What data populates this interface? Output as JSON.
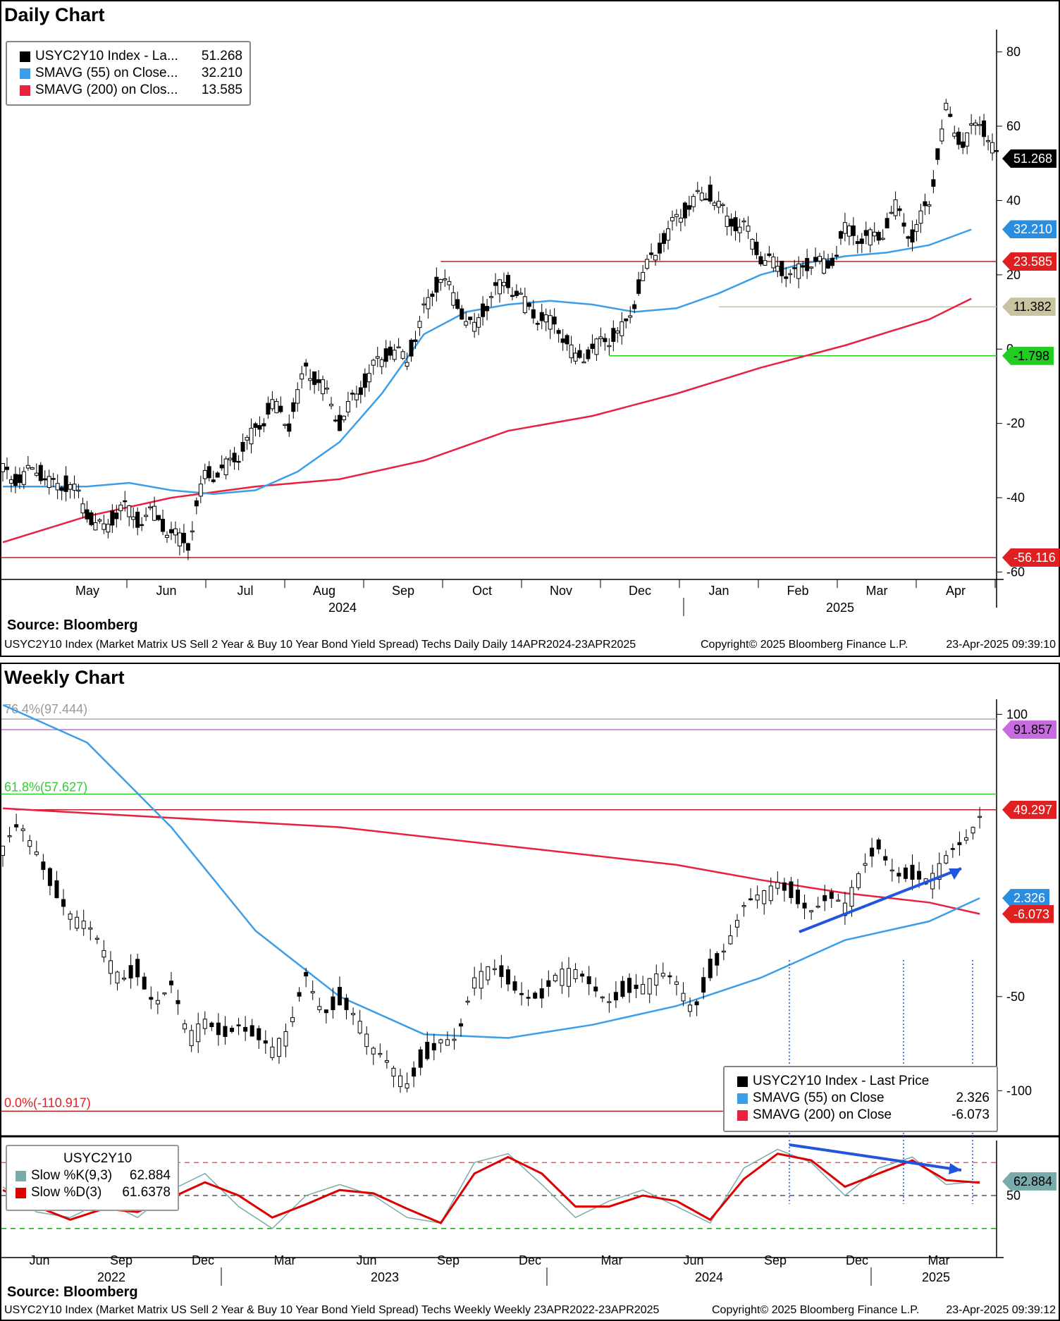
{
  "daily": {
    "title": "Daily Chart",
    "source": "Source:  Bloomberg",
    "footer_left": "USYC2Y10 Index (Market Matrix US Sell 2 Year & Buy 10 Year Bond Yield Spread) Techs Daily  Daily 14APR2024-23APR2025",
    "footer_mid": "Copyright© 2025 Bloomberg Finance L.P.",
    "footer_right": "23-Apr-2025 09:39:10",
    "legend": [
      {
        "name": "USYC2Y10 Index - La...",
        "value": "51.268",
        "color": "#000000"
      },
      {
        "name": "SMAVG (55)  on Close...",
        "value": "32.210",
        "color": "#3c9ee8"
      },
      {
        "name": "SMAVG (200)  on Clos...",
        "value": "13.585",
        "color": "#e8213f"
      }
    ],
    "tags": [
      {
        "label": "51.268",
        "value": 51.268,
        "bg": "#000000",
        "fg": "#ffffff"
      },
      {
        "label": "32.210",
        "value": 32.21,
        "bg": "#2a8de0",
        "fg": "#ffffff"
      },
      {
        "label": "23.585",
        "value": 23.585,
        "bg": "#e02020",
        "fg": "#ffffff"
      },
      {
        "label": "11.382",
        "value": 11.382,
        "bg": "#c8c4a0",
        "fg": "#000000"
      },
      {
        "label": "-1.798",
        "value": -1.798,
        "bg": "#22cc22",
        "fg": "#000000"
      },
      {
        "label": "-56.116",
        "value": -56.116,
        "bg": "#e02020",
        "fg": "#ffffff"
      }
    ]
  },
  "weekly": {
    "title": "Weekly Chart",
    "source": "Source:  Bloomberg",
    "footer_left": "USYC2Y10 Index (Market Matrix US Sell 2 Year & Buy 10 Year Bond Yield Spread) Techs Weekly  Weekly 23APR2022-23APR2025",
    "footer_mid": "Copyright© 2025 Bloomberg Finance L.P.",
    "footer_right": "23-Apr-2025 09:39:12",
    "fib_labels": {
      "f764": "76.4%(97.444)",
      "f618": "61.8%(57.627)",
      "f0": "0.0%(-110.917)"
    },
    "legend": [
      {
        "name": "USYC2Y10 Index - Last Price",
        "value": "",
        "color": "#000000"
      },
      {
        "name": "SMAVG (55)  on Close",
        "value": "2.326",
        "color": "#3c9ee8"
      },
      {
        "name": "SMAVG (200)  on Close",
        "value": "-6.073",
        "color": "#e8213f"
      }
    ],
    "tags": [
      {
        "label": "91.857",
        "value": 91.857,
        "bg": "#c86ae0",
        "fg": "#000000"
      },
      {
        "label": "49.297",
        "value": 49.297,
        "bg": "#e02020",
        "fg": "#ffffff"
      },
      {
        "label": "2.326",
        "value": 2.326,
        "bg": "#2a8de0",
        "fg": "#ffffff"
      },
      {
        "label": "-6.073",
        "value": -6.073,
        "bg": "#e02020",
        "fg": "#ffffff"
      }
    ],
    "stoch_legend": {
      "title": "USYC2Y10",
      "k": {
        "name": "Slow %K(9,3)",
        "value": "62.884",
        "color": "#7aabaa"
      },
      "d": {
        "name": "Slow %D(3)",
        "value": "61.6378",
        "color": "#dd0000"
      }
    },
    "stoch_tag": {
      "label": "62.884",
      "value": 62.884,
      "bg": "#7aabaa",
      "fg": "#000000"
    }
  },
  "chart_data": [
    {
      "type": "line",
      "title": "Daily Chart",
      "x_axis": [
        "May",
        "Jun",
        "Jul",
        "Aug",
        "Sep",
        "Oct",
        "Nov",
        "Dec",
        "Jan",
        "Feb",
        "Mar",
        "Apr"
      ],
      "x_years": [
        "2024",
        "2025"
      ],
      "ylim": [
        -62,
        86
      ],
      "yticks": [
        80,
        60,
        40,
        20,
        0,
        -20,
        -40,
        -60
      ],
      "series": [
        {
          "name": "USYC2Y10 Index - Last Price",
          "x": [
            0,
            20,
            40,
            60,
            80,
            100,
            120,
            140,
            160,
            180,
            200,
            220,
            240,
            260,
            280,
            300,
            320,
            340,
            360,
            380,
            400,
            420,
            440,
            460,
            480,
            500,
            520,
            540,
            560,
            580,
            600,
            620,
            640,
            660,
            680,
            700,
            720,
            740,
            760,
            780,
            800,
            820,
            840,
            860,
            880,
            900,
            920,
            940,
            960,
            980,
            1000,
            1020,
            1040,
            1060,
            1080,
            1100,
            1120,
            1140,
            1160,
            1180
          ],
          "values": [
            -33,
            -35,
            -32,
            -37,
            -36,
            -44,
            -49,
            -42,
            -46,
            -44,
            -50,
            -52,
            -34,
            -33,
            -28,
            -22,
            -15,
            -20,
            -5,
            -10,
            -20,
            -12,
            -5,
            0,
            -3,
            10,
            20,
            12,
            5,
            15,
            18,
            12,
            8,
            6,
            -3,
            0,
            3,
            6,
            20,
            28,
            35,
            40,
            42,
            35,
            33,
            25,
            22,
            20,
            24,
            22,
            32,
            30,
            30,
            38,
            30,
            40,
            64,
            55,
            62,
            51.268
          ]
        },
        {
          "name": "SMAVG (55)  on Close",
          "x": [
            0,
            100,
            150,
            200,
            250,
            300,
            350,
            400,
            450,
            500,
            550,
            600,
            650,
            700,
            750,
            800,
            850,
            900,
            950,
            1000,
            1050,
            1100,
            1150
          ],
          "values": [
            -37,
            -37,
            -36,
            -38,
            -39,
            -38,
            -33,
            -25,
            -12,
            4,
            10,
            12,
            13,
            12,
            10,
            11,
            15,
            20,
            23,
            25,
            26,
            28,
            32.21
          ]
        },
        {
          "name": "SMAVG (200)  on Close",
          "x": [
            0,
            100,
            200,
            300,
            400,
            500,
            600,
            700,
            800,
            900,
            1000,
            1100,
            1150
          ],
          "values": [
            -52,
            -45,
            -40,
            -37,
            -35,
            -30,
            -22,
            -18,
            -12,
            -5,
            1,
            8,
            13.585
          ]
        }
      ],
      "annotations": {
        "resistance": 23.585,
        "level_11": 11.382,
        "support": -1.798,
        "low": -56.116
      }
    },
    {
      "type": "line",
      "title": "Weekly Chart",
      "x_axis": [
        "Jun",
        "Sep",
        "Dec",
        "Mar",
        "Jun",
        "Sep",
        "Dec",
        "Mar",
        "Jun",
        "Sep",
        "Dec",
        "Mar"
      ],
      "x_years": [
        "2022",
        "2023",
        "2024",
        "2025"
      ],
      "ylim": [
        -122,
        108
      ],
      "yticks": [
        100,
        -50,
        -100
      ],
      "series": [
        {
          "name": "USYC2Y10 Index - Last Price",
          "x": [
            0,
            20,
            40,
            60,
            80,
            100,
            120,
            140,
            160,
            180,
            200,
            220,
            240,
            260,
            280,
            300,
            320,
            340,
            360,
            380,
            400,
            420,
            440,
            460,
            480,
            500,
            520,
            540,
            560,
            580,
            600,
            620,
            640,
            660,
            680,
            700,
            720,
            740,
            760,
            780,
            800,
            820,
            840,
            860,
            880,
            900,
            920,
            940,
            960,
            980,
            1000,
            1020,
            1040,
            1060,
            1080,
            1100,
            1120,
            1140,
            1160
          ],
          "values": [
            25,
            40,
            30,
            10,
            -5,
            -15,
            -30,
            -40,
            -35,
            -50,
            -45,
            -75,
            -65,
            -70,
            -60,
            -70,
            -80,
            -72,
            -40,
            -55,
            -50,
            -60,
            -82,
            -90,
            -95,
            -80,
            -70,
            -75,
            -45,
            -35,
            -40,
            -45,
            -50,
            -40,
            -40,
            -45,
            -48,
            -45,
            -45,
            -42,
            -45,
            -55,
            -35,
            -20,
            -5,
            0,
            10,
            5,
            0,
            2,
            -5,
            15,
            30,
            20,
            15,
            10,
            20,
            30,
            49.297
          ]
        },
        {
          "name": "SMAVG (55)  on Close",
          "x": [
            0,
            100,
            200,
            300,
            400,
            500,
            600,
            700,
            800,
            900,
            1000,
            1100,
            1160
          ],
          "values": [
            105,
            85,
            40,
            -15,
            -50,
            -70,
            -72,
            -65,
            -55,
            -40,
            -20,
            -10,
            2.326
          ]
        },
        {
          "name": "SMAVG (200)  on Close",
          "x": [
            0,
            200,
            400,
            600,
            800,
            900,
            1000,
            1100,
            1160
          ],
          "values": [
            50,
            45,
            40,
            30,
            20,
            12,
            5,
            0,
            -6.073
          ]
        }
      ],
      "annotations": {
        "fib_76_4": 97.444,
        "fib_61_8": 57.627,
        "fib_0": -110.917,
        "purple_level": 91.857,
        "red_level": 49.297
      }
    },
    {
      "type": "line",
      "title": "USYC2Y10",
      "ylim": [
        0,
        100
      ],
      "yticks": [
        50
      ],
      "series": [
        {
          "name": "Slow %K(9,3)",
          "x": [
            0,
            40,
            80,
            120,
            160,
            200,
            240,
            280,
            320,
            360,
            400,
            440,
            480,
            520,
            560,
            600,
            640,
            680,
            720,
            760,
            800,
            840,
            880,
            920,
            960,
            1000,
            1040,
            1080,
            1120,
            1160
          ],
          "values": [
            58,
            35,
            30,
            45,
            30,
            55,
            70,
            40,
            20,
            50,
            60,
            50,
            30,
            25,
            80,
            88,
            60,
            30,
            45,
            55,
            40,
            25,
            75,
            92,
            80,
            50,
            75,
            85,
            60,
            62.884
          ]
        },
        {
          "name": "Slow %D(3)",
          "x": [
            0,
            40,
            80,
            120,
            160,
            200,
            240,
            280,
            320,
            360,
            400,
            440,
            480,
            520,
            560,
            600,
            640,
            680,
            720,
            760,
            800,
            840,
            880,
            920,
            960,
            1000,
            1040,
            1080,
            1120,
            1160
          ],
          "values": [
            55,
            40,
            28,
            38,
            35,
            48,
            62,
            50,
            30,
            42,
            55,
            52,
            38,
            25,
            70,
            85,
            70,
            40,
            40,
            50,
            45,
            28,
            65,
            88,
            82,
            58,
            70,
            82,
            64,
            61.6378
          ]
        }
      ],
      "reference_lines": [
        80,
        50,
        20
      ]
    }
  ]
}
